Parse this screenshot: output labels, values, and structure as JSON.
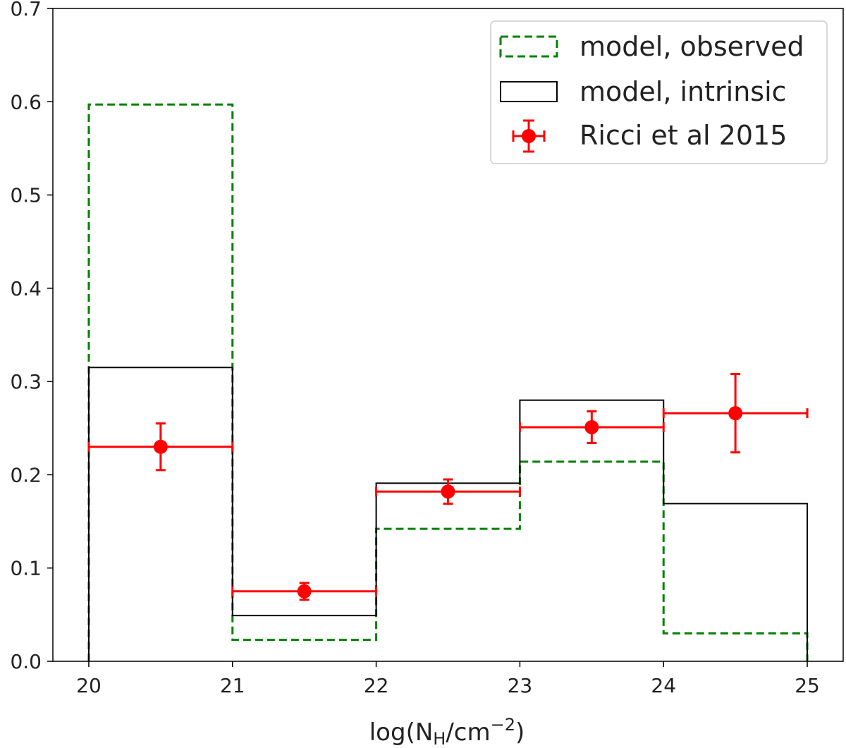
{
  "chart_data": {
    "type": "histogram",
    "title": "",
    "xlabel": {
      "base": "log(N",
      "sub": "H",
      "mid": "/cm",
      "sup": "−2",
      "end": ")"
    },
    "ylabel": "",
    "xlim": [
      19.75,
      25.25
    ],
    "ylim": [
      0.0,
      0.7
    ],
    "xticks": [
      "20",
      "21",
      "22",
      "23",
      "24",
      "25"
    ],
    "yticks": [
      "0.0",
      "0.1",
      "0.2",
      "0.3",
      "0.4",
      "0.5",
      "0.6",
      "0.7"
    ],
    "bin_edges": [
      20,
      21,
      22,
      23,
      24,
      25
    ],
    "series": [
      {
        "name": "model, observed",
        "style": "dashed-step",
        "color": "#008000",
        "values": [
          0.597,
          0.023,
          0.142,
          0.214,
          0.03
        ]
      },
      {
        "name": "model, intrinsic",
        "style": "solid-step",
        "color": "#000000",
        "values": [
          0.315,
          0.049,
          0.191,
          0.28,
          0.169
        ]
      },
      {
        "name": "Ricci et al 2015",
        "style": "errorbar",
        "color": "#ff0000",
        "x": [
          20.5,
          21.5,
          22.5,
          23.5,
          24.5
        ],
        "y": [
          0.23,
          0.075,
          0.182,
          0.251,
          0.266
        ],
        "xerr": [
          0.5,
          0.5,
          0.5,
          0.5,
          0.5
        ],
        "yerr": [
          0.025,
          0.009,
          0.013,
          0.017,
          0.042
        ]
      }
    ],
    "legend": {
      "position": "top-right",
      "labels": [
        "model, observed",
        "model, intrinsic",
        "Ricci et al 2015"
      ]
    }
  }
}
